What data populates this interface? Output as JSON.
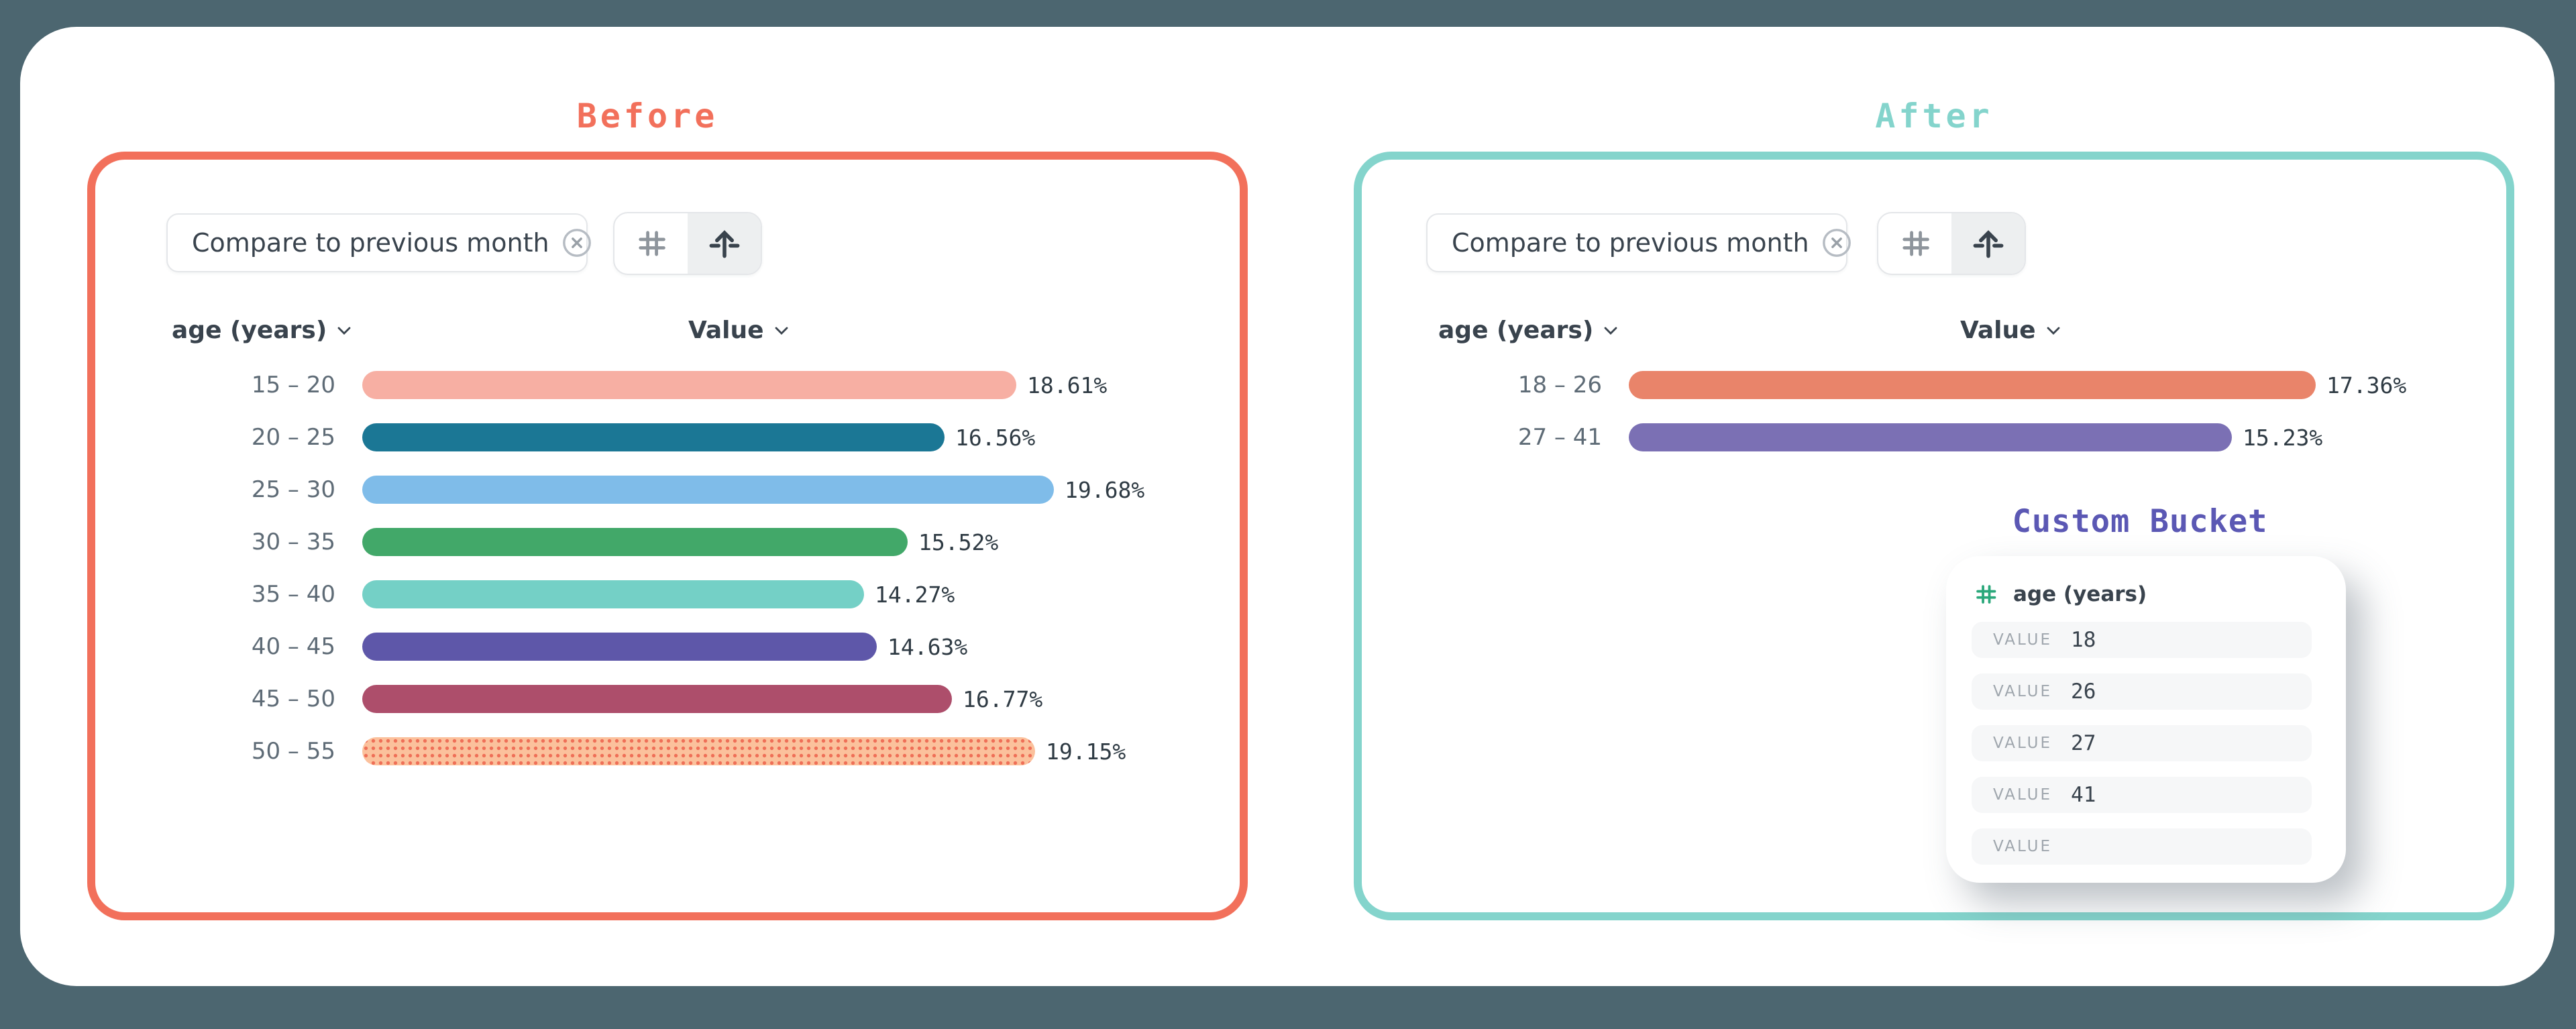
{
  "page": {
    "background": "#4C6670",
    "canvas_background": "#ffffff"
  },
  "panels": [
    {
      "title": "Before",
      "accent": "#F2705B",
      "filter_chip": {
        "label": "Compare to previous month",
        "close_icon": "circle-x"
      },
      "toolbar": {
        "buttons": [
          {
            "icon": "hash",
            "active": false
          },
          {
            "icon": "arrow-up-dashes",
            "active": true
          }
        ]
      },
      "columns": {
        "dimension": "age (years)",
        "measure": "Value"
      }
    },
    {
      "title": "After",
      "accent": "#84D4CC",
      "filter_chip": {
        "label": "Compare to previous month",
        "close_icon": "circle-x"
      },
      "toolbar": {
        "buttons": [
          {
            "icon": "hash",
            "active": false
          },
          {
            "icon": "arrow-up-dashes",
            "active": true
          }
        ]
      },
      "columns": {
        "dimension": "age (years)",
        "measure": "Value"
      },
      "custom_bucket": {
        "title": "Custom Bucket",
        "accent": "#5B58B4",
        "field": {
          "icon": "hash",
          "icon_color": "#2BA87B",
          "label": "age (years)"
        },
        "rows": [
          {
            "label": "VALUE",
            "value": "18"
          },
          {
            "label": "VALUE",
            "value": "26"
          },
          {
            "label": "VALUE",
            "value": "27"
          },
          {
            "label": "VALUE",
            "value": "41"
          },
          {
            "label": "VALUE",
            "value": ""
          }
        ]
      }
    }
  ],
  "chart_data": [
    {
      "type": "bar",
      "orientation": "horizontal",
      "title": "Before",
      "xlabel": "Value",
      "ylabel": "age (years)",
      "unit": "%",
      "categories": [
        "15 – 20",
        "20 – 25",
        "25 – 30",
        "30 – 35",
        "35 – 40",
        "40 – 45",
        "45 – 50",
        "50 – 55"
      ],
      "values": [
        18.61,
        16.56,
        19.68,
        15.52,
        14.27,
        14.63,
        16.77,
        19.15
      ],
      "value_labels": [
        "18.61%",
        "16.56%",
        "19.68%",
        "15.52%",
        "14.27%",
        "14.63%",
        "16.77%",
        "19.15%"
      ],
      "colors": [
        "#F7AFA3",
        "#1B7795",
        "#7FBCE9",
        "#42A869",
        "#74D0C6",
        "#5E57A9",
        "#AD4E6B",
        "#FBC19C"
      ],
      "patterns": [
        null,
        null,
        null,
        null,
        null,
        null,
        null,
        {
          "type": "dots",
          "base": "#FBC19C",
          "dot": "#EF6F57"
        }
      ],
      "grid": false,
      "legend": false
    },
    {
      "type": "bar",
      "orientation": "horizontal",
      "title": "After",
      "xlabel": "Value",
      "ylabel": "age (years)",
      "unit": "%",
      "categories": [
        "18 – 26",
        "27 – 41"
      ],
      "values": [
        17.36,
        15.23
      ],
      "value_labels": [
        "17.36%",
        "15.23%"
      ],
      "colors": [
        "#E9846A",
        "#7B70B4"
      ],
      "patterns": [
        null,
        null
      ],
      "grid": false,
      "legend": false
    }
  ]
}
